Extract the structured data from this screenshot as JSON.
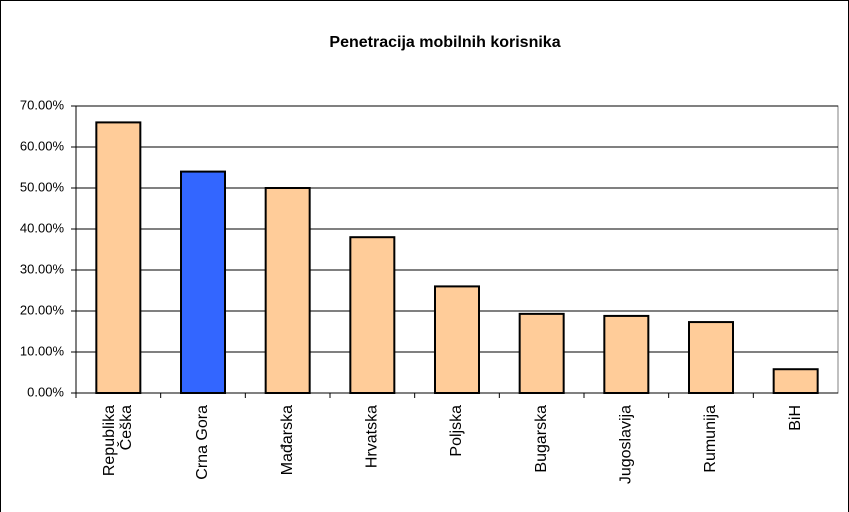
{
  "chart_data": {
    "type": "bar",
    "title": "Penetracija mobilnih korisnika",
    "categories": [
      "Republika Češka",
      "Crna Gora",
      "Mađarska",
      "Hrvatska",
      "Poljska",
      "Bugarska",
      "Jugoslavija",
      "Rumunija",
      "BiH"
    ],
    "values": [
      66,
      54,
      50,
      38,
      26,
      19.3,
      18.8,
      17.3,
      5.8
    ],
    "colors": [
      "#ffcc99",
      "#3366ff",
      "#ffcc99",
      "#ffcc99",
      "#ffcc99",
      "#ffcc99",
      "#ffcc99",
      "#ffcc99",
      "#ffcc99"
    ],
    "ylim": [
      0,
      70
    ],
    "yticks": [
      {
        "value": 0,
        "label": "0.00%"
      },
      {
        "value": 10,
        "label": "10.00%"
      },
      {
        "value": 20,
        "label": "20.00%"
      },
      {
        "value": 30,
        "label": "30.00%"
      },
      {
        "value": 40,
        "label": "40.00%"
      },
      {
        "value": 50,
        "label": "50.00%"
      },
      {
        "value": 60,
        "label": "60.00%"
      },
      {
        "value": 70,
        "label": "70.00%"
      }
    ],
    "grid": true
  }
}
